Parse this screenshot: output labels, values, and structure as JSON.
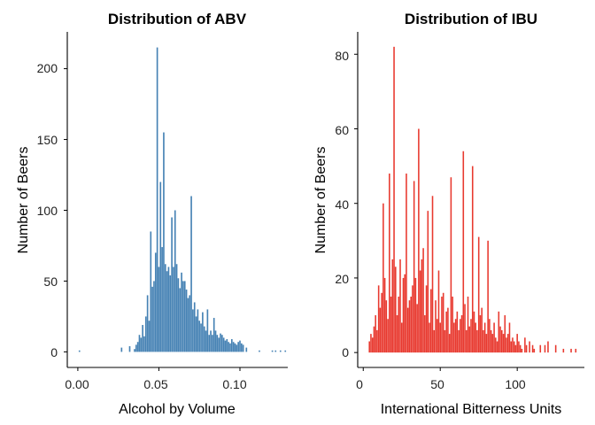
{
  "chart_data": [
    {
      "type": "bar",
      "title": "Distribution of ABV",
      "xlabel": "Alcohol by Volume",
      "ylabel": "Number of Beers",
      "xlim": [
        -0.0065,
        0.1295
      ],
      "ylim": [
        -11,
        226
      ],
      "xticks": [
        0.0,
        0.05,
        0.1
      ],
      "xtick_labels": [
        "0.00",
        "0.05",
        "0.10"
      ],
      "yticks": [
        0,
        50,
        100,
        150,
        200
      ],
      "ytick_labels": [
        "0",
        "50",
        "100",
        "150",
        "200"
      ],
      "bin_width": 0.001,
      "color": "#4682B4",
      "x": [
        0.001,
        0.027,
        0.032,
        0.035,
        0.036,
        0.037,
        0.038,
        0.039,
        0.04,
        0.041,
        0.042,
        0.043,
        0.044,
        0.045,
        0.046,
        0.047,
        0.048,
        0.049,
        0.05,
        0.051,
        0.052,
        0.053,
        0.054,
        0.055,
        0.056,
        0.057,
        0.058,
        0.059,
        0.06,
        0.061,
        0.062,
        0.063,
        0.064,
        0.065,
        0.066,
        0.067,
        0.068,
        0.069,
        0.07,
        0.071,
        0.072,
        0.073,
        0.074,
        0.075,
        0.076,
        0.077,
        0.078,
        0.079,
        0.08,
        0.081,
        0.082,
        0.083,
        0.084,
        0.085,
        0.086,
        0.087,
        0.088,
        0.089,
        0.09,
        0.091,
        0.092,
        0.093,
        0.094,
        0.095,
        0.096,
        0.097,
        0.098,
        0.099,
        0.1,
        0.101,
        0.102,
        0.104,
        0.112,
        0.12,
        0.122,
        0.125,
        0.128
      ],
      "values": [
        1,
        3,
        4,
        2,
        5,
        7,
        12,
        10,
        19,
        11,
        25,
        40,
        22,
        85,
        46,
        50,
        70,
        215,
        60,
        120,
        74,
        155,
        62,
        57,
        60,
        54,
        95,
        60,
        100,
        62,
        52,
        45,
        56,
        50,
        50,
        44,
        38,
        40,
        110,
        30,
        35,
        25,
        30,
        22,
        20,
        28,
        18,
        15,
        30,
        12,
        15,
        12,
        24,
        15,
        12,
        10,
        13,
        12,
        10,
        8,
        9,
        7,
        6,
        9,
        7,
        6,
        5,
        7,
        8,
        6,
        5,
        3,
        1,
        1,
        1,
        1,
        1
      ]
    },
    {
      "type": "bar",
      "title": "Distribution of IBU",
      "xlabel": "International Bitterness Units",
      "ylabel": "Number of Beers",
      "xlim": [
        -3.6,
        143.6
      ],
      "ylim": [
        -4,
        86
      ],
      "xticks": [
        0,
        50,
        100
      ],
      "xtick_labels": [
        "0",
        "50",
        "100"
      ],
      "yticks": [
        0,
        20,
        40,
        60,
        80
      ],
      "ytick_labels": [
        "0",
        "20",
        "40",
        "60",
        "80"
      ],
      "bin_width": 1,
      "color": "#E8392F",
      "x": [
        4,
        5,
        6,
        7,
        8,
        9,
        10,
        11,
        12,
        13,
        14,
        15,
        16,
        17,
        18,
        19,
        20,
        21,
        22,
        23,
        24,
        25,
        26,
        27,
        28,
        29,
        30,
        31,
        32,
        33,
        34,
        35,
        36,
        37,
        38,
        39,
        40,
        41,
        42,
        43,
        44,
        45,
        46,
        47,
        48,
        49,
        50,
        51,
        52,
        53,
        54,
        55,
        56,
        57,
        58,
        59,
        60,
        61,
        62,
        63,
        64,
        65,
        66,
        67,
        68,
        69,
        70,
        71,
        72,
        73,
        74,
        75,
        76,
        77,
        78,
        79,
        80,
        81,
        82,
        83,
        84,
        85,
        86,
        87,
        88,
        89,
        90,
        91,
        92,
        93,
        94,
        95,
        96,
        97,
        98,
        99,
        100,
        101,
        102,
        103,
        105,
        106,
        108,
        110,
        111,
        115,
        118,
        120,
        125,
        130,
        135,
        138
      ],
      "values": [
        3,
        5,
        4,
        7,
        10,
        6,
        18,
        12,
        16,
        40,
        20,
        14,
        9,
        48,
        15,
        25,
        82,
        23,
        10,
        15,
        25,
        8,
        20,
        21,
        48,
        12,
        14,
        15,
        18,
        46,
        20,
        13,
        60,
        22,
        25,
        28,
        10,
        18,
        38,
        8,
        17,
        42,
        6,
        14,
        9,
        22,
        8,
        15,
        16,
        6,
        11,
        12,
        5,
        47,
        15,
        8,
        9,
        11,
        6,
        9,
        10,
        54,
        13,
        6,
        15,
        7,
        9,
        50,
        11,
        8,
        6,
        31,
        10,
        12,
        6,
        8,
        5,
        30,
        9,
        6,
        5,
        8,
        4,
        3,
        11,
        7,
        6,
        5,
        10,
        4,
        5,
        8,
        3,
        4,
        3,
        2,
        5,
        3,
        2,
        1,
        4,
        2,
        3,
        2,
        1,
        2,
        2,
        3,
        2,
        1,
        1,
        1
      ]
    }
  ]
}
